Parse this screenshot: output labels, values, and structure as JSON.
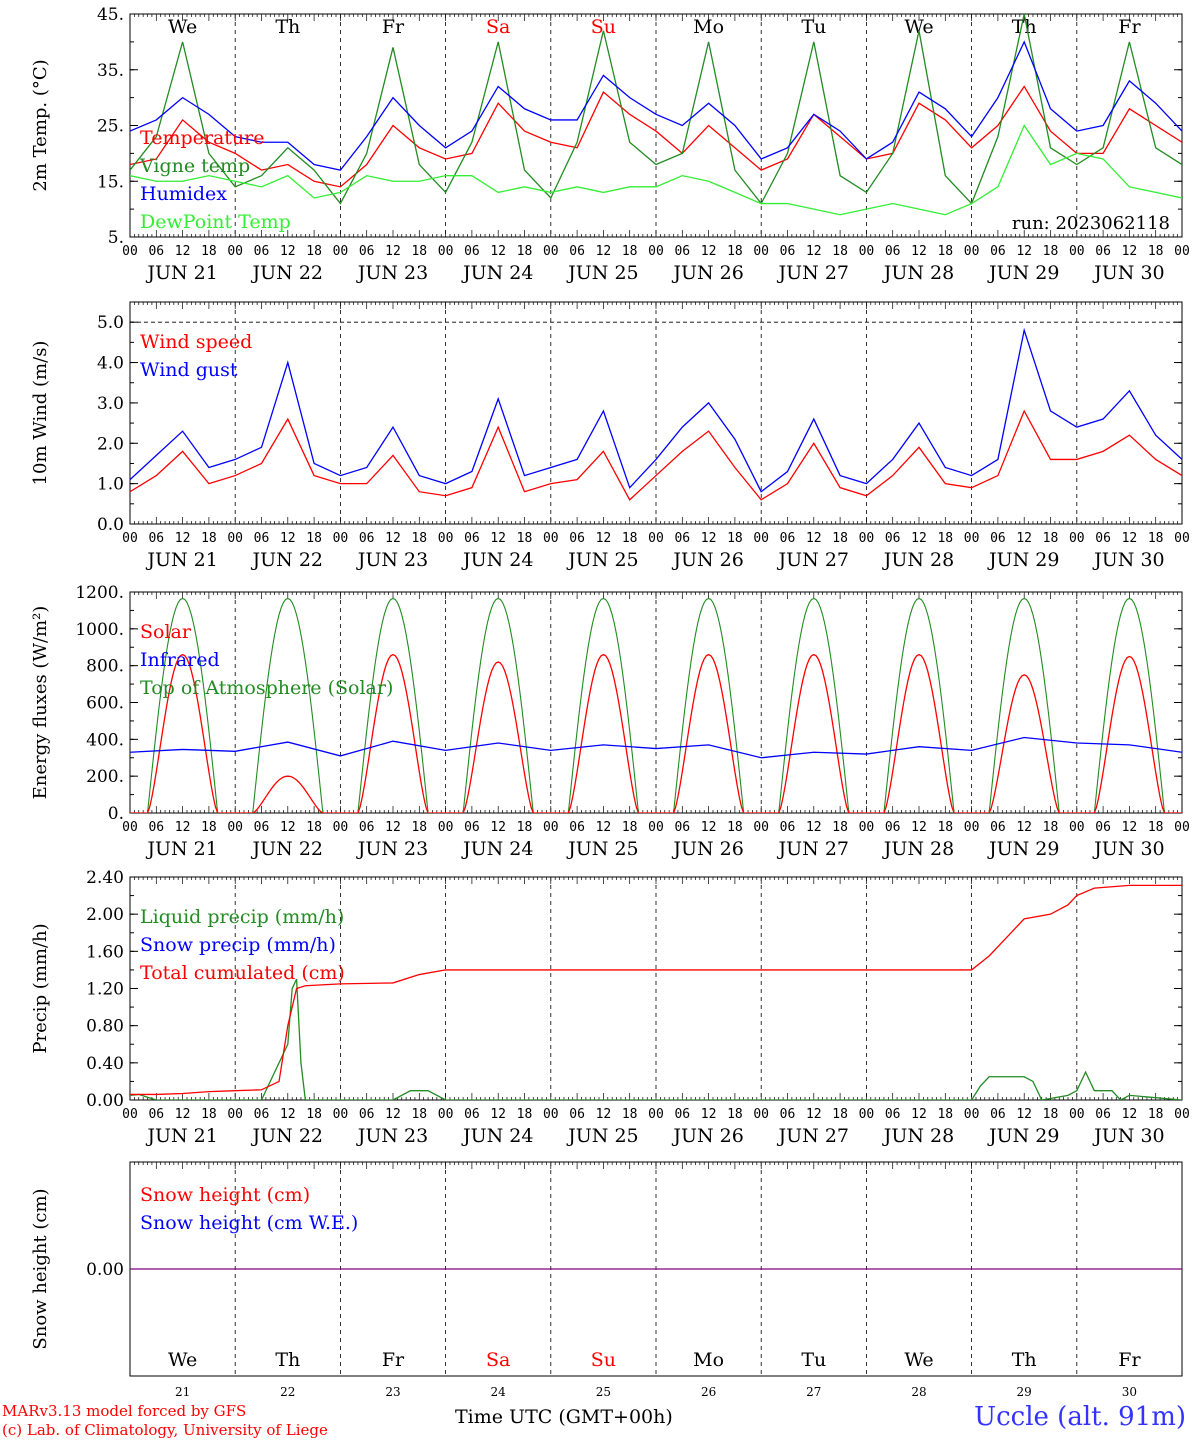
{
  "footer": {
    "credit_line1": "MARv3.13 model forced by GFS",
    "credit_line2": "(c) Lab. of Climatology, University of Liege",
    "x_title": "Time UTC (GMT+00h)",
    "station": "Uccle (alt. 91m)"
  },
  "days": {
    "weekdays": [
      "We",
      "Th",
      "Fr",
      "Sa",
      "Su",
      "Mo",
      "Tu",
      "We",
      "Th",
      "Fr"
    ],
    "weekend_flags": [
      false,
      false,
      false,
      true,
      true,
      false,
      false,
      false,
      false,
      false
    ],
    "day_labels": [
      "JUN 21",
      "JUN 22",
      "JUN 23",
      "JUN 24",
      "JUN 25",
      "JUN 26",
      "JUN 27",
      "JUN 28",
      "JUN 29",
      "JUN 30"
    ],
    "day_numbers": [
      "21",
      "22",
      "23",
      "24",
      "25",
      "26",
      "27",
      "28",
      "29",
      "30"
    ],
    "hour_labels": [
      "00",
      "06",
      "12",
      "18"
    ],
    "final_hour_label": "00"
  },
  "colors": {
    "red": "#ff0000",
    "green": "#228b22",
    "blue": "#0000ff",
    "lightgreen": "#33ee33",
    "purple": "#7f007f"
  },
  "chart_data": [
    {
      "type": "line",
      "ylabel": "2m Temp. (°C)",
      "ylim": [
        5,
        45
      ],
      "yticks": [
        {
          "v": 5,
          "t": "5."
        },
        {
          "v": 15,
          "t": "15."
        },
        {
          "v": 25,
          "t": "25."
        },
        {
          "v": 35,
          "t": "35."
        },
        {
          "v": 45,
          "t": "45."
        }
      ],
      "annotation": "run: 2023062118",
      "legend": [
        {
          "label": "Temperature",
          "color": "#ff0000"
        },
        {
          "label": "Vigne temp",
          "color": "#228b22"
        },
        {
          "label": "Humidex",
          "color": "#0000ff"
        },
        {
          "label": "DewPoint Temp",
          "color": "#33ee33"
        }
      ],
      "series": [
        {
          "name": "Temperature",
          "color": "#ff0000",
          "x": [
            0,
            6,
            12,
            18,
            24,
            30,
            36,
            42,
            48,
            54,
            60,
            66,
            72,
            78,
            84,
            90,
            96,
            102,
            108,
            114,
            120,
            126,
            132,
            138,
            144,
            150,
            156,
            162,
            168,
            174,
            180,
            186,
            192,
            198,
            204,
            210,
            216,
            222,
            228,
            234,
            240
          ],
          "y": [
            18,
            19,
            26,
            22,
            20,
            17,
            18,
            15,
            14,
            18,
            25,
            21,
            19,
            20,
            29,
            24,
            22,
            21,
            31,
            27,
            24,
            20,
            25,
            21,
            17,
            19,
            27,
            23,
            19,
            20,
            29,
            26,
            21,
            25,
            32,
            24,
            20,
            20,
            28,
            25,
            22
          ]
        },
        {
          "name": "Vigne temp",
          "color": "#228b22",
          "x": [
            0,
            6,
            12,
            18,
            24,
            30,
            36,
            42,
            48,
            54,
            60,
            66,
            72,
            78,
            84,
            90,
            96,
            102,
            108,
            114,
            120,
            126,
            132,
            138,
            144,
            150,
            156,
            162,
            168,
            174,
            180,
            186,
            192,
            198,
            204,
            210,
            216,
            222,
            228,
            234,
            240
          ],
          "y": [
            17,
            23,
            40,
            20,
            14,
            16,
            21,
            17,
            11,
            20,
            39,
            18,
            13,
            22,
            40,
            17,
            12,
            22,
            42,
            22,
            18,
            20,
            40,
            17,
            11,
            20,
            40,
            16,
            13,
            20,
            42,
            16,
            11,
            23,
            45,
            21,
            18,
            21,
            40,
            21,
            18
          ]
        },
        {
          "name": "Humidex",
          "color": "#0000ff",
          "x": [
            0,
            6,
            12,
            18,
            24,
            30,
            36,
            42,
            48,
            54,
            60,
            66,
            72,
            78,
            84,
            90,
            96,
            102,
            108,
            114,
            120,
            126,
            132,
            138,
            144,
            150,
            156,
            162,
            168,
            174,
            180,
            186,
            192,
            198,
            204,
            210,
            216,
            222,
            228,
            234,
            240
          ],
          "y": [
            24,
            26,
            30,
            27,
            23,
            22,
            22,
            18,
            17,
            23,
            30,
            25,
            21,
            24,
            32,
            28,
            26,
            26,
            34,
            30,
            27,
            25,
            29,
            25,
            19,
            21,
            27,
            24,
            19,
            22,
            31,
            28,
            23,
            30,
            40,
            28,
            24,
            25,
            33,
            29,
            24
          ]
        },
        {
          "name": "DewPoint Temp",
          "color": "#33ee33",
          "x": [
            0,
            6,
            12,
            18,
            24,
            30,
            36,
            42,
            48,
            54,
            60,
            66,
            72,
            78,
            84,
            90,
            96,
            102,
            108,
            114,
            120,
            126,
            132,
            138,
            144,
            150,
            156,
            162,
            168,
            174,
            180,
            186,
            192,
            198,
            204,
            210,
            216,
            222,
            228,
            234,
            240
          ],
          "y": [
            16,
            15,
            15,
            16,
            15,
            14,
            16,
            12,
            13,
            16,
            15,
            15,
            16,
            16,
            13,
            14,
            13,
            14,
            13,
            14,
            14,
            16,
            15,
            13,
            11,
            11,
            10,
            9,
            10,
            11,
            10,
            9,
            11,
            14,
            25,
            18,
            20,
            19,
            14,
            13,
            12
          ]
        }
      ]
    },
    {
      "type": "line",
      "ylabel": "10m Wind (m/s)",
      "ylim": [
        0,
        5.5
      ],
      "yticks": [
        {
          "v": 0,
          "t": "0.0"
        },
        {
          "v": 1,
          "t": "1.0"
        },
        {
          "v": 2,
          "t": "2.0"
        },
        {
          "v": 3,
          "t": "3.0"
        },
        {
          "v": 4,
          "t": "4.0"
        },
        {
          "v": 5,
          "t": "5.0"
        }
      ],
      "legend": [
        {
          "label": "Wind speed",
          "color": "#ff0000"
        },
        {
          "label": "Wind gust",
          "color": "#0000ff"
        }
      ],
      "series": [
        {
          "name": "Wind speed",
          "color": "#ff0000",
          "x": [
            0,
            6,
            12,
            18,
            24,
            30,
            36,
            42,
            48,
            54,
            60,
            66,
            72,
            78,
            84,
            90,
            96,
            102,
            108,
            114,
            120,
            126,
            132,
            138,
            144,
            150,
            156,
            162,
            168,
            174,
            180,
            186,
            192,
            198,
            204,
            210,
            216,
            222,
            228,
            234,
            240
          ],
          "y": [
            0.8,
            1.2,
            1.8,
            1.0,
            1.2,
            1.5,
            2.6,
            1.2,
            1.0,
            1.0,
            1.7,
            0.8,
            0.7,
            0.9,
            2.4,
            0.8,
            1.0,
            1.1,
            1.8,
            0.6,
            1.2,
            1.8,
            2.3,
            1.4,
            0.6,
            1.0,
            2.0,
            0.9,
            0.7,
            1.2,
            1.9,
            1.0,
            0.9,
            1.2,
            2.8,
            1.6,
            1.6,
            1.8,
            2.2,
            1.6,
            1.2
          ]
        },
        {
          "name": "Wind gust",
          "color": "#0000ff",
          "x": [
            0,
            6,
            12,
            18,
            24,
            30,
            36,
            42,
            48,
            54,
            60,
            66,
            72,
            78,
            84,
            90,
            96,
            102,
            108,
            114,
            120,
            126,
            132,
            138,
            144,
            150,
            156,
            162,
            168,
            174,
            180,
            186,
            192,
            198,
            204,
            210,
            216,
            222,
            228,
            234,
            240
          ],
          "y": [
            1.1,
            1.7,
            2.3,
            1.4,
            1.6,
            1.9,
            4.0,
            1.5,
            1.2,
            1.4,
            2.4,
            1.2,
            1.0,
            1.3,
            3.1,
            1.2,
            1.4,
            1.6,
            2.8,
            0.9,
            1.6,
            2.4,
            3.0,
            2.1,
            0.8,
            1.3,
            2.6,
            1.2,
            1.0,
            1.6,
            2.5,
            1.4,
            1.2,
            1.6,
            4.8,
            2.8,
            2.4,
            2.6,
            3.3,
            2.2,
            1.6
          ]
        }
      ]
    },
    {
      "type": "line",
      "ylabel": "Energy fluxes (W/m²)",
      "ylim": [
        0,
        1200
      ],
      "yticks": [
        {
          "v": 0,
          "t": "0."
        },
        {
          "v": 200,
          "t": "200."
        },
        {
          "v": 400,
          "t": "400."
        },
        {
          "v": 600,
          "t": "600."
        },
        {
          "v": 800,
          "t": "800."
        },
        {
          "v": 1000,
          "t": "1000."
        },
        {
          "v": 1200,
          "t": "1200."
        }
      ],
      "legend": [
        {
          "label": "Solar",
          "color": "#ff0000"
        },
        {
          "label": "Infrared",
          "color": "#0000ff"
        },
        {
          "label": "Top of Atmosphere (Solar)",
          "color": "#228b22"
        }
      ],
      "solar_peak_per_day": [
        860,
        200,
        860,
        820,
        860,
        860,
        860,
        860,
        750,
        850
      ],
      "toa_peak": 1165,
      "series": [
        {
          "name": "Infrared",
          "color": "#0000ff",
          "x": [
            0,
            12,
            24,
            36,
            48,
            60,
            72,
            84,
            96,
            108,
            120,
            132,
            144,
            156,
            168,
            180,
            192,
            204,
            216,
            228,
            240
          ],
          "y": [
            330,
            345,
            335,
            385,
            310,
            390,
            340,
            380,
            340,
            370,
            350,
            370,
            300,
            330,
            320,
            360,
            340,
            410,
            380,
            370,
            330
          ]
        }
      ]
    },
    {
      "type": "line",
      "ylabel": "Precip (mm/h)",
      "ylim": [
        0,
        2.4
      ],
      "yticks": [
        {
          "v": 0,
          "t": "0.00"
        },
        {
          "v": 0.4,
          "t": "0.40"
        },
        {
          "v": 0.8,
          "t": "0.80"
        },
        {
          "v": 1.2,
          "t": "1.20"
        },
        {
          "v": 1.6,
          "t": "1.60"
        },
        {
          "v": 2.0,
          "t": "2.00"
        },
        {
          "v": 2.4,
          "t": "2.40"
        }
      ],
      "legend": [
        {
          "label": "Liquid precip (mm/h)",
          "color": "#228b22"
        },
        {
          "label": "Snow precip (mm/h)",
          "color": "#0000ff"
        },
        {
          "label": "Total cumulated (cm)",
          "color": "#ff0000"
        }
      ],
      "series": [
        {
          "name": "Liquid precip (mm/h)",
          "color": "#228b22",
          "x": [
            0,
            2,
            4,
            6,
            30,
            33,
            36,
            37,
            38,
            39,
            40,
            42,
            60,
            64,
            68,
            72,
            192,
            194,
            196,
            198,
            200,
            204,
            206,
            208,
            214,
            216,
            218,
            220,
            222,
            224,
            226,
            228,
            240
          ],
          "y": [
            0.05,
            0.06,
            0.03,
            0,
            0,
            0.3,
            0.6,
            1.2,
            1.3,
            0.4,
            0,
            0,
            0,
            0.1,
            0.1,
            0,
            0,
            0.15,
            0.25,
            0.25,
            0.25,
            0.25,
            0.2,
            0,
            0.05,
            0.1,
            0.3,
            0.1,
            0.1,
            0.1,
            0,
            0.05,
            0
          ]
        },
        {
          "name": "Total cumulated (cm)",
          "color": "#ff0000",
          "x": [
            0,
            6,
            12,
            18,
            24,
            30,
            34,
            36,
            38,
            40,
            48,
            60,
            66,
            72,
            96,
            120,
            144,
            168,
            190,
            192,
            196,
            200,
            204,
            210,
            214,
            216,
            220,
            228,
            240
          ],
          "y": [
            0.06,
            0.06,
            0.07,
            0.09,
            0.1,
            0.11,
            0.2,
            0.8,
            1.2,
            1.23,
            1.25,
            1.26,
            1.35,
            1.4,
            1.4,
            1.4,
            1.4,
            1.4,
            1.4,
            1.4,
            1.55,
            1.75,
            1.95,
            2.0,
            2.1,
            2.2,
            2.28,
            2.31,
            2.31
          ]
        }
      ]
    },
    {
      "type": "line",
      "ylabel": "Snow height (cm)",
      "yticks": [
        {
          "v": 0,
          "t": "0.00"
        }
      ],
      "legend": [
        {
          "label": "Snow height (cm)",
          "color": "#ff0000"
        },
        {
          "label": "Snow height (cm W.E.)",
          "color": "#0000ff"
        }
      ],
      "series": [
        {
          "name": "Snow height (cm)",
          "color": "#7f007f",
          "x": [
            0,
            240
          ],
          "y": [
            0,
            0
          ]
        }
      ]
    }
  ]
}
